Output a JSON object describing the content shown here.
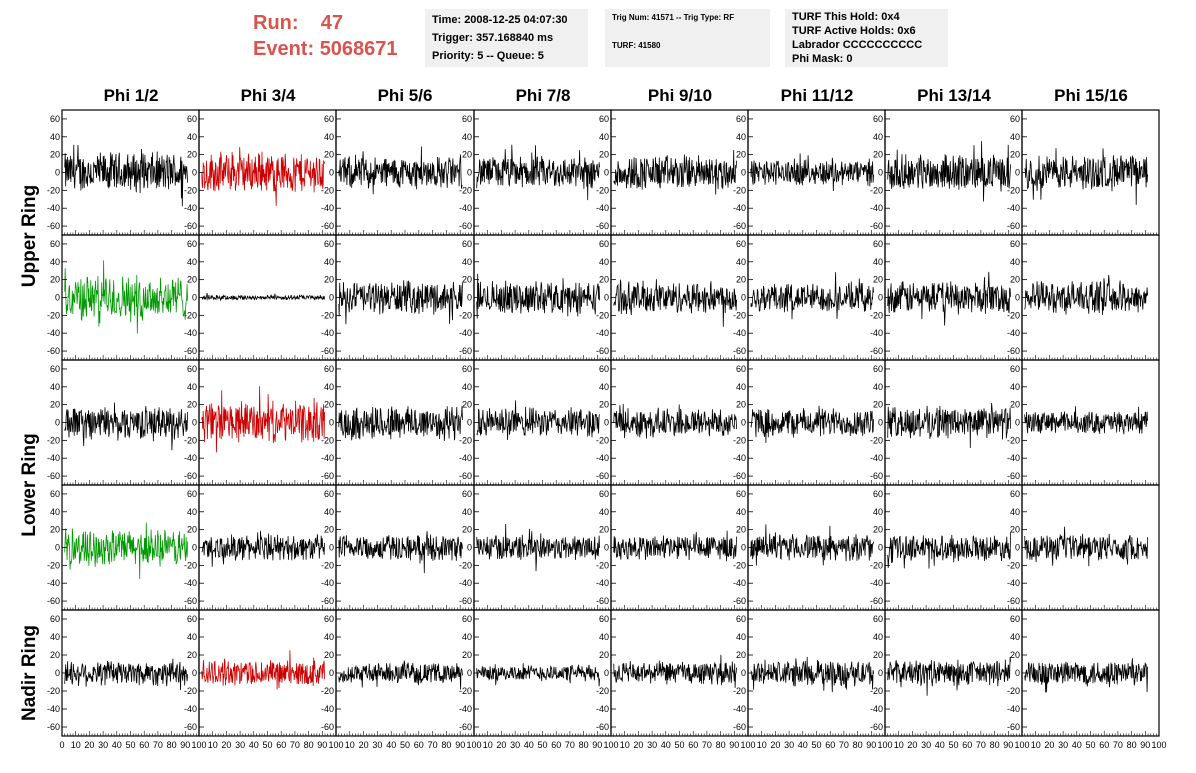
{
  "header": {
    "run_label": "Run:",
    "run_value": "47",
    "event_label": "Event:",
    "event_value": "5068671"
  },
  "info_box_1": {
    "time": "Time: 2008-12-25 04:07:30",
    "trigger": "Trigger: 357.168840 ms",
    "priority": "Priority: 5 -- Queue: 5"
  },
  "info_box_2": {
    "trig": "Trig Num: 41571 -- Trig Type: RF",
    "turf": "TURF: 41580"
  },
  "info_box_3": {
    "this_hold": "TURF This Hold: 0x4",
    "active_holds": "TURF Active Holds: 0x6",
    "labrador": "Labrador CCCCCCCCCC",
    "phi_mask": "Phi Mask: 0"
  },
  "chart_data": {
    "type": "line",
    "columns": [
      "Phi 1/2",
      "Phi 3/4",
      "Phi 5/6",
      "Phi 7/8",
      "Phi 9/10",
      "Phi 11/12",
      "Phi 13/14",
      "Phi 15/16"
    ],
    "ring_labels": [
      "Upper Ring",
      "Lower Ring",
      "Nadir Ring"
    ],
    "xlim": [
      0,
      100
    ],
    "ylim": [
      -70,
      70
    ],
    "y_ticks": [
      -60,
      -40,
      -20,
      0,
      20,
      40,
      60
    ],
    "x_ticks": [
      0,
      10,
      20,
      30,
      40,
      50,
      60,
      70,
      80,
      90,
      100
    ],
    "grid": false,
    "colors": {
      "default": "#000000",
      "red": "#cc0000",
      "green": "#009900"
    },
    "rows": [
      {
        "amplitudes": [
          25,
          25,
          20,
          20,
          22,
          16,
          22,
          22
        ],
        "colors": [
          "black",
          "red",
          "black",
          "black",
          "black",
          "black",
          "black",
          "black"
        ]
      },
      {
        "amplitudes": [
          28,
          3,
          20,
          20,
          20,
          18,
          20,
          20
        ],
        "colors": [
          "green",
          "black",
          "black",
          "black",
          "black",
          "black",
          "black",
          "black"
        ]
      },
      {
        "amplitudes": [
          20,
          25,
          22,
          18,
          18,
          18,
          20,
          14
        ],
        "colors": [
          "black",
          "red",
          "black",
          "black",
          "black",
          "black",
          "black",
          "black"
        ]
      },
      {
        "amplitudes": [
          22,
          16,
          16,
          16,
          16,
          16,
          16,
          16
        ],
        "colors": [
          "green",
          "black",
          "black",
          "black",
          "black",
          "black",
          "black",
          "black"
        ]
      },
      {
        "amplitudes": [
          16,
          16,
          12,
          10,
          14,
          16,
          16,
          16
        ],
        "colors": [
          "black",
          "red",
          "black",
          "black",
          "black",
          "black",
          "black",
          "black"
        ]
      }
    ]
  }
}
